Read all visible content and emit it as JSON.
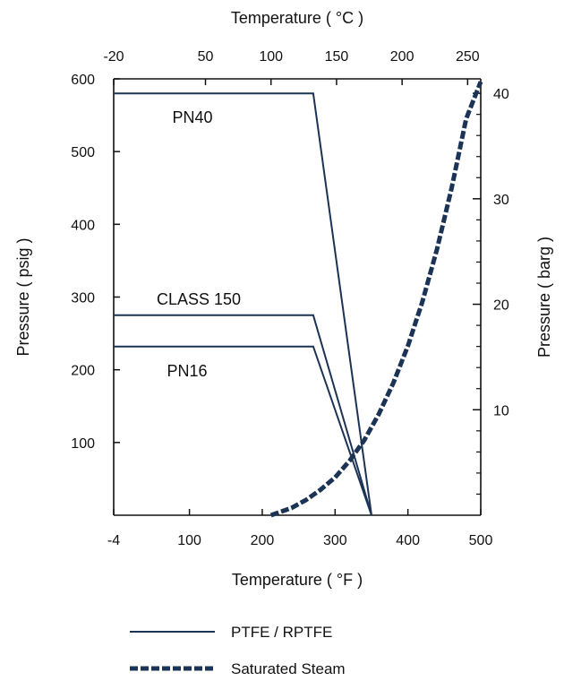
{
  "chart_data": {
    "type": "line",
    "title": "",
    "xlabel": "Temperature ( °F )",
    "x2label": "Temperature ( °C )",
    "ylabel": "Pressure ( psig )",
    "y2label": "Pressure ( barg )",
    "xlim": [
      -4,
      500
    ],
    "ylim": [
      0,
      600
    ],
    "grid": false,
    "legend_position": "bottom",
    "x_ticks": [
      -4,
      100,
      200,
      300,
      400,
      500
    ],
    "x_tick_labels": [
      "-4",
      "100",
      "200",
      "300",
      "400",
      "500"
    ],
    "y_ticks": [
      100,
      200,
      300,
      400,
      500,
      600
    ],
    "y_tick_labels": [
      "100",
      "200",
      "300",
      "400",
      "500",
      "600"
    ],
    "x2_ticks": [
      -20,
      50,
      100,
      150,
      200,
      250
    ],
    "x2_tick_labels": [
      "-20",
      "50",
      "100",
      "150",
      "200",
      "250"
    ],
    "y2_ticks": [
      10,
      20,
      30,
      40
    ],
    "y2_tick_labels": [
      "10",
      "20",
      "30",
      "40"
    ],
    "series": [
      {
        "name": "PN40",
        "legend_group": "PTFE / RPTFE",
        "style": "solid",
        "color": "#1b3355",
        "x": [
          -4,
          270,
          350
        ],
        "y": [
          580,
          580,
          0
        ]
      },
      {
        "name": "CLASS 150",
        "legend_group": "PTFE / RPTFE",
        "style": "solid",
        "color": "#1b3355",
        "x": [
          -4,
          270,
          350
        ],
        "y": [
          275,
          275,
          0
        ]
      },
      {
        "name": "PN16",
        "legend_group": "PTFE / RPTFE",
        "style": "solid",
        "color": "#1b3355",
        "x": [
          -4,
          270,
          350
        ],
        "y": [
          232,
          232,
          0
        ]
      },
      {
        "name": "Saturated Steam",
        "style": "dashed",
        "color": "#1b3355",
        "x": [
          212,
          240,
          260,
          280,
          300,
          320,
          340,
          360,
          380,
          400,
          420,
          440,
          460,
          480,
          500
        ],
        "y": [
          0,
          10,
          21,
          35,
          52,
          75,
          103,
          139,
          182,
          233,
          294,
          366,
          450,
          545,
          596
        ]
      }
    ],
    "series_labels": [
      "PN40",
      "CLASS 150",
      "PN16"
    ],
    "legend": [
      {
        "label": "PTFE / RPTFE",
        "style": "solid"
      },
      {
        "label": "Saturated Steam",
        "style": "dashed"
      }
    ]
  }
}
